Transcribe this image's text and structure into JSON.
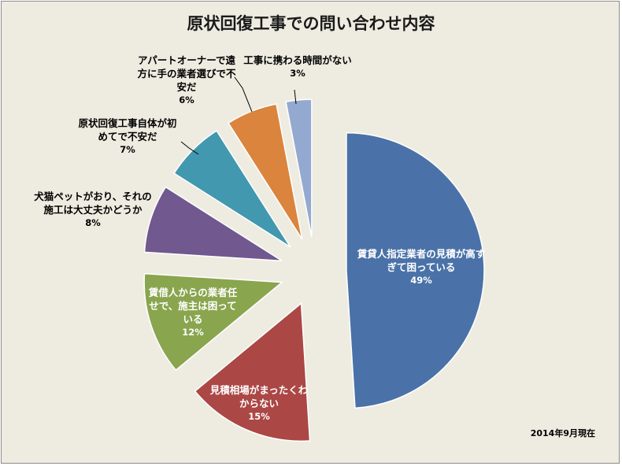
{
  "chart_data": {
    "type": "pie",
    "title": "原状回復工事での問い合わせ内容",
    "slices": [
      {
        "label": "賃貸人指定業者の見積が高すぎて困っている",
        "value": 49,
        "pct_label": "49%",
        "color": "#4a72a8"
      },
      {
        "label": "見積相場がまったくわからない",
        "value": 15,
        "pct_label": "15%",
        "color": "#ab4745"
      },
      {
        "label": "賃借人からの業者任せで、施主は困っている",
        "value": 12,
        "pct_label": "12%",
        "color": "#89a54e"
      },
      {
        "label": "犬猫ペットがおり、それの施工は大丈夫かどうか",
        "value": 8,
        "pct_label": "8%",
        "color": "#71588f"
      },
      {
        "label": "原状回復工事自体が初めてで不安だ",
        "value": 7,
        "pct_label": "7%",
        "color": "#4198af"
      },
      {
        "label": "アパートオーナーで遠方に手の業者選びで不安だ",
        "value": 6,
        "pct_label": "6%",
        "color": "#db843d"
      },
      {
        "label": "工事に携わる時間がない",
        "value": 3,
        "pct_label": "3%",
        "color": "#93a9cf"
      }
    ]
  },
  "footnote": "2014年9月現在"
}
